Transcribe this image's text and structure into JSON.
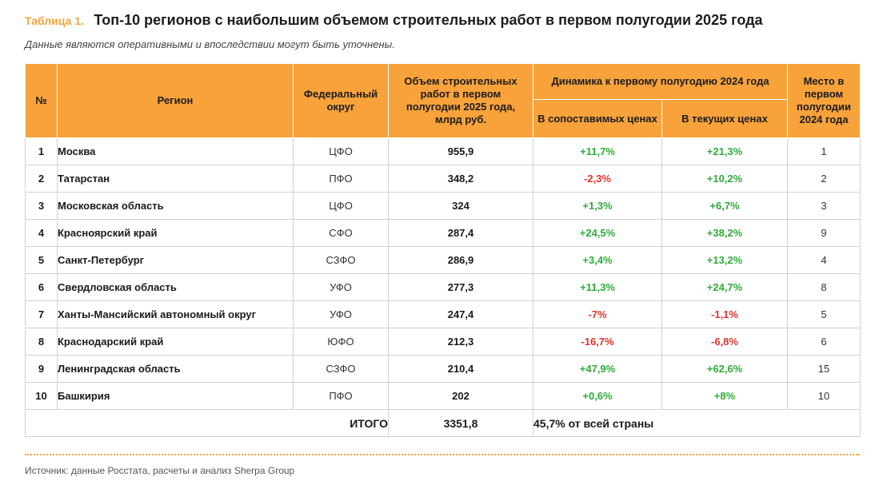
{
  "header": {
    "table_number": "Таблица 1.",
    "title": "Топ-10 регионов с наибольшим объемом строительных работ в первом полугодии 2025 года",
    "subtitle": "Данные являются оперативными и впоследствии могут быть уточнены."
  },
  "table": {
    "columns": {
      "rank": "№",
      "region": "Регион",
      "district": "Федеральный округ",
      "volume": "Объем строительных работ в первом полугодии 2025 года, млрд руб.",
      "dynamics": "Динамика к первому полугодию 2024 года",
      "comparable": "В сопоставимых ценах",
      "current": "В текущих ценах",
      "place": "Место в первом полугодии 2024 года"
    },
    "rows": [
      {
        "rank": "1",
        "region": "Москва",
        "district": "ЦФО",
        "volume": "955,9",
        "comparable": "+11,7%",
        "current": "+21,3%",
        "place": "1"
      },
      {
        "rank": "2",
        "region": "Татарстан",
        "district": "ПФО",
        "volume": "348,2",
        "comparable": "-2,3%",
        "current": "+10,2%",
        "place": "2"
      },
      {
        "rank": "3",
        "region": "Московская область",
        "district": "ЦФО",
        "volume": "324",
        "comparable": "+1,3%",
        "current": "+6,7%",
        "place": "3"
      },
      {
        "rank": "4",
        "region": "Красноярский край",
        "district": "СФО",
        "volume": "287,4",
        "comparable": "+24,5%",
        "current": "+38,2%",
        "place": "9"
      },
      {
        "rank": "5",
        "region": "Санкт-Петербург",
        "district": "СЗФО",
        "volume": "286,9",
        "comparable": "+3,4%",
        "current": "+13,2%",
        "place": "4"
      },
      {
        "rank": "6",
        "region": "Свердловская область",
        "district": "УФО",
        "volume": "277,3",
        "comparable": "+11,3%",
        "current": "+24,7%",
        "place": "8"
      },
      {
        "rank": "7",
        "region": "Ханты-Мансийский автономный округ",
        "district": "УФО",
        "volume": "247,4",
        "comparable": "-7%",
        "current": "-1,1%",
        "place": "5"
      },
      {
        "rank": "8",
        "region": "Краснодарский край",
        "district": "ЮФО",
        "volume": "212,3",
        "comparable": "-16,7%",
        "current": "-6,8%",
        "place": "6"
      },
      {
        "rank": "9",
        "region": "Ленинградская область",
        "district": "СЗФО",
        "volume": "210,4",
        "comparable": "+47,9%",
        "current": "+62,6%",
        "place": "15"
      },
      {
        "rank": "10",
        "region": "Башкирия",
        "district": "ПФО",
        "volume": "202",
        "comparable": "+0,6%",
        "current": "+8%",
        "place": "10"
      }
    ],
    "total": {
      "label": "ИТОГО",
      "volume": "3351,8",
      "share": "45,7% от всей страны"
    }
  },
  "footer": {
    "source": "Источник: данные Росстата, расчеты и анализ Sherpa Group"
  },
  "colors": {
    "accent": "#f7a23b",
    "positive": "#2eaa3a",
    "negative": "#e0322a"
  }
}
